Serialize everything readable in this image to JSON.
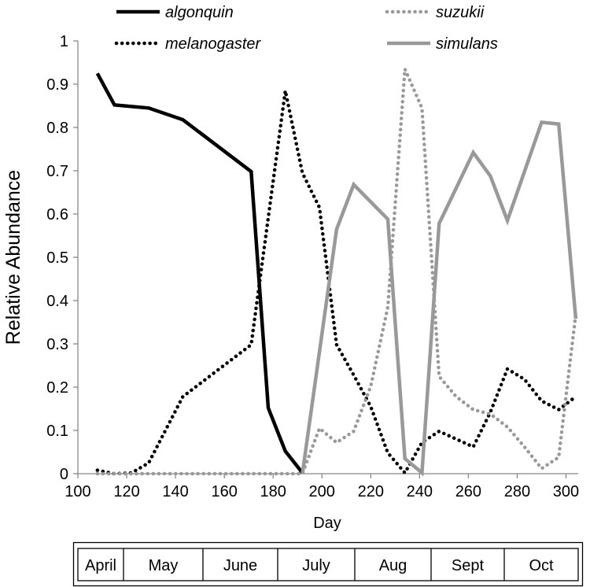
{
  "chart_data": {
    "type": "line",
    "title": "",
    "xlabel": "Day",
    "ylabel": "Relative Abundance",
    "xlim": [
      100,
      305
    ],
    "ylim": [
      0,
      1
    ],
    "x_ticks": [
      100,
      120,
      140,
      160,
      180,
      200,
      220,
      240,
      260,
      280,
      300
    ],
    "x_tick_labels": [
      "100",
      "120",
      "140",
      "160",
      "180",
      "200",
      "220",
      "240",
      "260",
      "280",
      "300"
    ],
    "y_ticks": [
      0,
      0.1,
      0.2,
      0.3,
      0.4,
      0.5,
      0.6,
      0.7,
      0.8,
      0.9,
      1
    ],
    "y_tick_labels": [
      "0",
      "0.1",
      "0.2",
      "0.3",
      "0.4",
      "0.5",
      "0.6",
      "0.7",
      "0.8",
      "0.9",
      "1"
    ],
    "grid": false,
    "legend_position": "top",
    "series": [
      {
        "name": "algonquin",
        "color": "#000000",
        "style": "solid",
        "points": [
          [
            108,
            0.925
          ],
          [
            115,
            0.852
          ],
          [
            129,
            0.845
          ],
          [
            143,
            0.818
          ],
          [
            171,
            0.698
          ],
          [
            178,
            0.152
          ],
          [
            185,
            0.052
          ],
          [
            192,
            0.002
          ]
        ]
      },
      {
        "name": "melanogaster",
        "color": "#000000",
        "style": "dotted",
        "points": [
          [
            108,
            0.008
          ],
          [
            115,
            0.0
          ],
          [
            122,
            0.002
          ],
          [
            129,
            0.025
          ],
          [
            143,
            0.178
          ],
          [
            157,
            0.238
          ],
          [
            171,
            0.298
          ],
          [
            185,
            0.885
          ],
          [
            192,
            0.695
          ],
          [
            199,
            0.615
          ],
          [
            206,
            0.298
          ],
          [
            213,
            0.228
          ],
          [
            220,
            0.155
          ],
          [
            227,
            0.048
          ],
          [
            234,
            0.002
          ],
          [
            241,
            0.072
          ],
          [
            248,
            0.098
          ],
          [
            262,
            0.062
          ],
          [
            269,
            0.142
          ],
          [
            276,
            0.242
          ],
          [
            283,
            0.218
          ],
          [
            290,
            0.168
          ],
          [
            297,
            0.148
          ],
          [
            304,
            0.178
          ]
        ]
      },
      {
        "name": "suzukii",
        "color": "#999999",
        "style": "dotted",
        "points": [
          [
            108,
            0.0
          ],
          [
            185,
            0.0
          ],
          [
            192,
            0.0
          ],
          [
            199,
            0.105
          ],
          [
            206,
            0.072
          ],
          [
            213,
            0.098
          ],
          [
            220,
            0.202
          ],
          [
            227,
            0.385
          ],
          [
            234,
            0.935
          ],
          [
            241,
            0.845
          ],
          [
            248,
            0.225
          ],
          [
            255,
            0.178
          ],
          [
            262,
            0.148
          ],
          [
            269,
            0.138
          ],
          [
            276,
            0.108
          ],
          [
            283,
            0.062
          ],
          [
            290,
            0.012
          ],
          [
            297,
            0.038
          ],
          [
            304,
            0.368
          ]
        ]
      },
      {
        "name": "simulans",
        "color": "#999999",
        "style": "solid",
        "points": [
          [
            192,
            0.0
          ],
          [
            206,
            0.565
          ],
          [
            213,
            0.668
          ],
          [
            227,
            0.588
          ],
          [
            234,
            0.035
          ],
          [
            241,
            0.002
          ],
          [
            248,
            0.578
          ],
          [
            262,
            0.742
          ],
          [
            269,
            0.688
          ],
          [
            276,
            0.585
          ],
          [
            290,
            0.812
          ],
          [
            297,
            0.808
          ],
          [
            304,
            0.358
          ]
        ]
      }
    ],
    "months": [
      "April",
      "May",
      "June",
      "July",
      "Aug",
      "Sept",
      "Oct"
    ]
  }
}
